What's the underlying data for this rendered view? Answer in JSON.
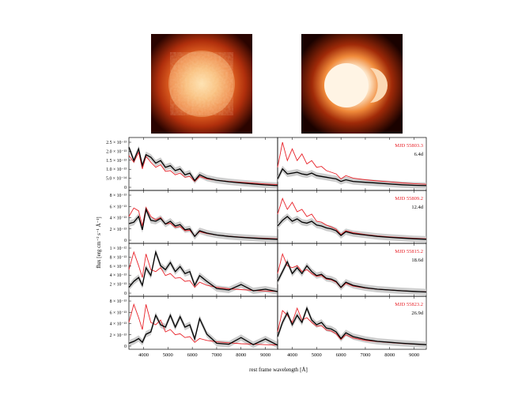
{
  "figure": {
    "ylabel": "flux [erg cm⁻² s⁻¹ Å⁻¹]",
    "xlabel": "rest frame wavelength [Å]",
    "images": [
      {
        "name": "model-image-left",
        "style": "turbulent orange sphere"
      },
      {
        "name": "model-image-right",
        "style": "bright asymmetric sphere with crescent"
      }
    ],
    "colors": {
      "model": "#e8232a",
      "observed": "#000000",
      "band": "#c8c8c8"
    }
  },
  "chart_data": {
    "type": "line",
    "xlim": [
      3400,
      9500
    ],
    "x_ticks": [
      "4000",
      "5000",
      "6000",
      "7000",
      "8000",
      "9000"
    ],
    "panels": [
      {
        "row": 0,
        "col": 0,
        "y_ticks": [
          "2.5 × 10⁻¹³",
          "2.0 × 10⁻¹³",
          "1.5 × 10⁻¹³",
          "1.0 × 10⁻¹³",
          "5.0 × 10⁻¹⁴",
          "0"
        ],
        "ylim": [
          0,
          2.7
        ],
        "series": [
          {
            "role": "observed",
            "x": [
              3400,
              3600,
              3800,
              3950,
              4100,
              4300,
              4500,
              4700,
              4900,
              5100,
              5300,
              5500,
              5700,
              5900,
              6100,
              6300,
              6600,
              7000,
              7500,
              8000,
              8500,
              9000,
              9500
            ],
            "y": [
              2.4,
              1.6,
              2.3,
              1.3,
              1.95,
              1.8,
              1.45,
              1.6,
              1.2,
              1.3,
              1.0,
              1.1,
              0.75,
              0.85,
              0.4,
              0.75,
              0.55,
              0.42,
              0.33,
              0.26,
              0.2,
              0.14,
              0.1
            ]
          },
          {
            "role": "model",
            "x": [
              3400,
              3600,
              3800,
              3950,
              4100,
              4300,
              4500,
              4700,
              4900,
              5100,
              5300,
              5500,
              5700,
              5900,
              6100,
              6300,
              6600,
              7000,
              7500,
              8000,
              8500,
              9000,
              9500
            ],
            "y": [
              1.9,
              1.5,
              2.1,
              1.1,
              1.85,
              1.5,
              1.2,
              1.35,
              0.95,
              1.0,
              0.75,
              0.85,
              0.6,
              0.65,
              0.35,
              0.65,
              0.5,
              0.42,
              0.35,
              0.3,
              0.25,
              0.2,
              0.16
            ]
          }
        ]
      },
      {
        "row": 0,
        "col": 1,
        "label": "MJD 55803.3",
        "age": "6.4d",
        "ylim": [
          0,
          2.7
        ],
        "series": [
          {
            "role": "observed",
            "x": [
              3400,
              3600,
              3800,
              4000,
              4200,
              4400,
              4600,
              4800,
              5000,
              5200,
              5400,
              5600,
              5800,
              6000,
              6200,
              6500,
              7000,
              7500,
              8000,
              8500,
              9000,
              9500
            ],
            "y": [
              0.5,
              1.1,
              0.8,
              0.85,
              0.9,
              0.8,
              0.75,
              0.85,
              0.7,
              0.65,
              0.6,
              0.55,
              0.5,
              0.35,
              0.45,
              0.35,
              0.3,
              0.25,
              0.2,
              0.15,
              0.12,
              0.1
            ]
          },
          {
            "role": "model",
            "x": [
              3400,
              3600,
              3800,
              4000,
              4200,
              4400,
              4600,
              4800,
              5000,
              5200,
              5400,
              5600,
              5800,
              6000,
              6200,
              6500,
              7000,
              7500,
              8000,
              8500,
              9000,
              9500
            ],
            "y": [
              1.2,
              2.7,
              1.6,
              2.3,
              1.6,
              2.0,
              1.4,
              1.6,
              1.2,
              1.25,
              1.0,
              0.9,
              0.8,
              0.5,
              0.7,
              0.55,
              0.45,
              0.38,
              0.32,
              0.26,
              0.22,
              0.18
            ]
          }
        ]
      },
      {
        "row": 1,
        "col": 0,
        "y_ticks": [
          "8 × 10⁻¹³",
          "6 × 10⁻¹³",
          "4 × 10⁻¹³",
          "2 × 10⁻¹³",
          "0"
        ],
        "ylim": [
          0,
          9.5
        ],
        "series": [
          {
            "role": "observed",
            "x": [
              3400,
              3600,
              3800,
              3950,
              4100,
              4300,
              4500,
              4700,
              4900,
              5100,
              5300,
              5500,
              5700,
              5900,
              6100,
              6300,
              6600,
              7000,
              7500,
              8000,
              8500,
              9000,
              9500
            ],
            "y": [
              3.5,
              3.8,
              5.0,
              2.2,
              6.5,
              4.2,
              4.0,
              4.6,
              3.4,
              4.0,
              3.0,
              3.3,
              2.2,
              2.4,
              0.8,
              2.0,
              1.5,
              1.1,
              0.8,
              0.6,
              0.45,
              0.3,
              0.2
            ]
          },
          {
            "role": "model",
            "x": [
              3400,
              3600,
              3800,
              3950,
              4100,
              4300,
              4500,
              4700,
              4900,
              5100,
              5300,
              5500,
              5700,
              5900,
              6100,
              6300,
              6600,
              7000,
              7500,
              8000,
              8500,
              9000,
              9500
            ],
            "y": [
              5.0,
              6.8,
              6.2,
              3.0,
              6.9,
              5.0,
              4.3,
              4.8,
              3.4,
              3.6,
              2.7,
              2.9,
              2.0,
              2.1,
              0.9,
              1.8,
              1.4,
              1.1,
              0.85,
              0.65,
              0.5,
              0.4,
              0.3
            ]
          }
        ]
      },
      {
        "row": 1,
        "col": 1,
        "label": "MJD 55809.2",
        "age": "12.4d",
        "ylim": [
          0,
          9.5
        ],
        "series": [
          {
            "role": "observed",
            "x": [
              3400,
              3600,
              3800,
              4000,
              4200,
              4400,
              4600,
              4800,
              5000,
              5200,
              5400,
              5600,
              5800,
              6000,
              6200,
              6500,
              7000,
              7500,
              8000,
              8500,
              9000,
              9500
            ],
            "y": [
              3.0,
              4.2,
              5.0,
              4.0,
              4.5,
              3.8,
              3.6,
              4.0,
              3.2,
              3.0,
              2.6,
              2.4,
              2.0,
              1.0,
              1.8,
              1.4,
              1.1,
              0.8,
              0.6,
              0.45,
              0.3,
              0.2
            ]
          },
          {
            "role": "model",
            "x": [
              3400,
              3600,
              3800,
              4000,
              4200,
              4400,
              4600,
              4800,
              5000,
              5200,
              5400,
              5600,
              5800,
              6000,
              6200,
              6500,
              7000,
              7500,
              8000,
              8500,
              9000,
              9500
            ],
            "y": [
              5.5,
              8.8,
              6.5,
              8.0,
              6.0,
              6.5,
              5.0,
              5.5,
              4.0,
              3.8,
              3.2,
              2.8,
              2.3,
              1.2,
              2.0,
              1.6,
              1.2,
              0.9,
              0.7,
              0.55,
              0.4,
              0.3
            ]
          }
        ]
      },
      {
        "row": 2,
        "col": 0,
        "y_ticks": [
          "1 × 10⁻¹²",
          "8 × 10⁻¹³",
          "6 × 10⁻¹³",
          "4 × 10⁻¹³",
          "2 × 10⁻¹³",
          "0"
        ],
        "ylim": [
          0,
          11.5
        ],
        "series": [
          {
            "role": "observed",
            "x": [
              3400,
              3600,
              3800,
              3950,
              4100,
              4300,
              4500,
              4700,
              4900,
              5100,
              5300,
              5500,
              5700,
              5900,
              6100,
              6300,
              6600,
              7000,
              7500,
              8000,
              8500,
              9000,
              9500
            ],
            "y": [
              1.5,
              3.0,
              4.0,
              2.0,
              6.5,
              4.5,
              10.5,
              7.0,
              6.0,
              7.8,
              5.5,
              6.8,
              5.0,
              5.5,
              2.0,
              4.5,
              3.0,
              1.2,
              0.8,
              2.2,
              0.6,
              1.0,
              0.4
            ]
          },
          {
            "role": "model",
            "x": [
              3400,
              3600,
              3800,
              3950,
              4100,
              4300,
              4500,
              4700,
              4900,
              5100,
              5300,
              5500,
              5700,
              5900,
              6100,
              6300,
              6600,
              7000,
              7500,
              8000,
              8500,
              9000,
              9500
            ],
            "y": [
              6.0,
              10.5,
              7.0,
              4.0,
              10.0,
              6.0,
              5.5,
              6.5,
              4.5,
              5.0,
              3.8,
              4.0,
              3.0,
              3.2,
              1.5,
              2.8,
              2.0,
              1.5,
              1.1,
              0.9,
              0.7,
              0.55,
              0.45
            ]
          }
        ]
      },
      {
        "row": 2,
        "col": 1,
        "label": "MJD 55815.2",
        "age": "18.6d",
        "ylim": [
          0,
          11.5
        ],
        "series": [
          {
            "role": "observed",
            "x": [
              3400,
              3600,
              3800,
              4000,
              4200,
              4400,
              4600,
              4800,
              5000,
              5200,
              5400,
              5600,
              5800,
              6000,
              6200,
              6500,
              7000,
              7500,
              8000,
              8500,
              9000,
              9500
            ],
            "y": [
              3.0,
              5.5,
              8.0,
              5.0,
              6.5,
              5.0,
              7.0,
              5.5,
              4.5,
              4.8,
              3.8,
              3.6,
              3.0,
              1.5,
              2.8,
              2.0,
              1.4,
              1.0,
              0.8,
              0.6,
              0.45,
              0.3
            ]
          },
          {
            "role": "model",
            "x": [
              3400,
              3600,
              3800,
              4000,
              4200,
              4400,
              4600,
              4800,
              5000,
              5200,
              5400,
              5600,
              5800,
              6000,
              6200,
              6500,
              7000,
              7500,
              8000,
              8500,
              9000,
              9500
            ],
            "y": [
              5.0,
              10.0,
              7.0,
              6.5,
              7.0,
              5.5,
              6.0,
              5.0,
              4.3,
              4.5,
              3.6,
              3.4,
              2.8,
              1.4,
              2.5,
              1.8,
              1.3,
              1.0,
              0.8,
              0.6,
              0.45,
              0.35
            ]
          }
        ]
      },
      {
        "row": 3,
        "col": 0,
        "y_ticks": [
          "8 × 10⁻¹³",
          "6 × 10⁻¹³",
          "4 × 10⁻¹³",
          "2 × 10⁻¹³",
          "0"
        ],
        "ylim": [
          0,
          9.5
        ],
        "series": [
          {
            "role": "observed",
            "x": [
              3400,
              3600,
              3800,
              3950,
              4100,
              4300,
              4500,
              4700,
              4900,
              5100,
              5300,
              5500,
              5700,
              5900,
              6100,
              6300,
              6600,
              7000,
              7500,
              8000,
              8500,
              9000,
              9500
            ],
            "y": [
              0.6,
              1.0,
              1.6,
              0.8,
              2.5,
              3.0,
              6.5,
              4.5,
              4.0,
              6.5,
              4.0,
              6.2,
              4.0,
              4.5,
              1.5,
              5.8,
              2.5,
              0.6,
              0.4,
              1.8,
              0.3,
              1.5,
              0.2
            ]
          },
          {
            "role": "model",
            "x": [
              3400,
              3600,
              3800,
              3950,
              4100,
              4300,
              4500,
              4700,
              4900,
              5100,
              5300,
              5500,
              5700,
              5900,
              6100,
              6300,
              6600,
              7000,
              7500,
              8000,
              8500,
              9000,
              9500
            ],
            "y": [
              5.0,
              8.8,
              6.0,
              3.5,
              8.8,
              5.0,
              4.5,
              5.5,
              3.0,
              3.5,
              2.4,
              2.6,
              1.8,
              2.0,
              0.8,
              1.6,
              1.2,
              0.9,
              0.7,
              0.5,
              0.4,
              0.3,
              0.25
            ]
          }
        ]
      },
      {
        "row": 3,
        "col": 1,
        "label": "MJD 55823.2",
        "age": "26.9d",
        "ylim": [
          0,
          9.5
        ],
        "series": [
          {
            "role": "observed",
            "x": [
              3400,
              3600,
              3800,
              4000,
              4200,
              4400,
              4600,
              4800,
              5000,
              5200,
              5400,
              5600,
              5800,
              6000,
              6200,
              6500,
              7000,
              7500,
              8000,
              8500,
              9000,
              9500
            ],
            "y": [
              2.0,
              5.0,
              7.0,
              4.5,
              6.5,
              5.0,
              8.0,
              5.5,
              4.5,
              5.0,
              3.8,
              3.6,
              3.0,
              1.6,
              2.8,
              2.0,
              1.4,
              1.0,
              0.8,
              0.6,
              0.45,
              0.3
            ]
          },
          {
            "role": "model",
            "x": [
              3400,
              3600,
              3800,
              4000,
              4200,
              4400,
              4600,
              4800,
              5000,
              5200,
              5400,
              5600,
              5800,
              6000,
              6200,
              6500,
              7000,
              7500,
              8000,
              8500,
              9000,
              9500
            ],
            "y": [
              3.0,
              7.5,
              6.5,
              5.0,
              8.0,
              5.5,
              6.0,
              5.0,
              4.2,
              4.3,
              3.4,
              3.2,
              2.6,
              1.4,
              2.4,
              1.7,
              1.2,
              0.95,
              0.75,
              0.55,
              0.42,
              0.32
            ]
          }
        ]
      }
    ]
  }
}
